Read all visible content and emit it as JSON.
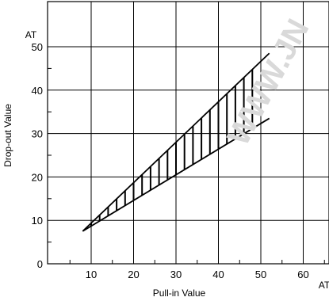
{
  "chart_data": {
    "type": "area",
    "title": "",
    "xlabel": "Pull-in Value",
    "ylabel": "Drop-out Value",
    "x_unit": "AT",
    "y_unit": "AT",
    "xlim": [
      0,
      68
    ],
    "ylim": [
      0,
      55
    ],
    "x_ticks": [
      10,
      20,
      30,
      40,
      50,
      60
    ],
    "y_ticks": [
      0,
      10,
      20,
      30,
      40,
      50
    ],
    "grid": true,
    "series": [
      {
        "values_xy": [
          [
            8,
            7.5
          ],
          [
            52,
            48.5
          ]
        ]
      },
      {
        "values_xy": [
          [
            8,
            7.5
          ],
          [
            52,
            33.5
          ]
        ]
      }
    ],
    "hatch_x": [
      10,
      12,
      14,
      16,
      18,
      20,
      22,
      24,
      26,
      28,
      30,
      32,
      34,
      36,
      38,
      40,
      42,
      44,
      46,
      48
    ],
    "watermark": "WWW.JN"
  }
}
